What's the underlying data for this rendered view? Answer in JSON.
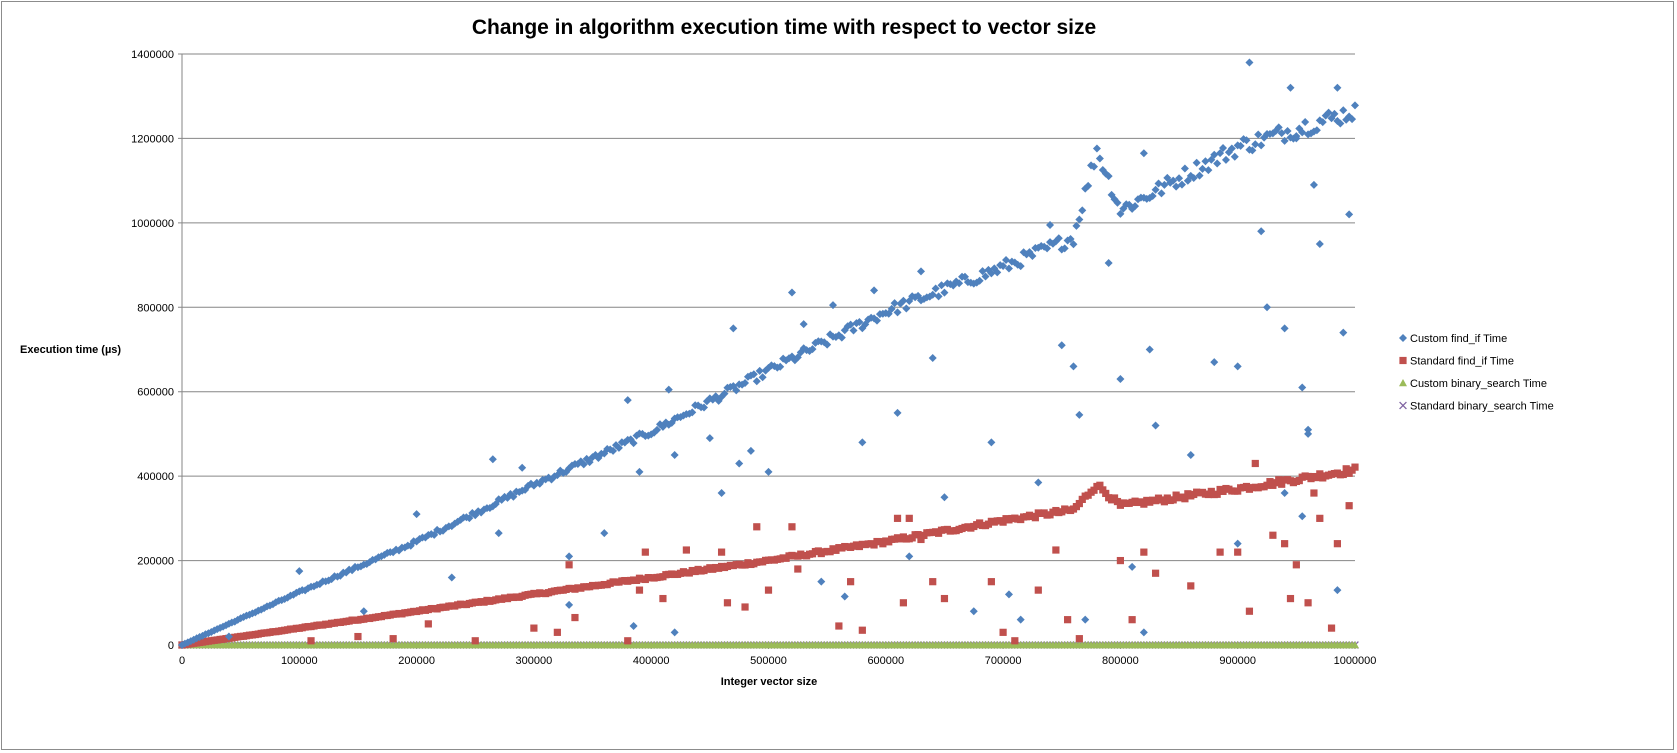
{
  "chart_data": {
    "type": "scatter",
    "title": "Change in algorithm execution time with respect to vector size",
    "xlabel": "Integer vector size",
    "ylabel": "Execution time  (µs)",
    "xlim": [
      0,
      1000000
    ],
    "ylim": [
      0,
      1400000
    ],
    "x_ticks": [
      "0",
      "100000",
      "200000",
      "300000",
      "400000",
      "500000",
      "600000",
      "700000",
      "800000",
      "900000",
      "1000000"
    ],
    "y_ticks": [
      "0",
      "200000",
      "400000",
      "600000",
      "800000",
      "1000000",
      "1200000",
      "1400000"
    ],
    "grid": "horizontal",
    "legend_position": "right",
    "series": [
      {
        "name": "Custom find_if Time",
        "marker": "diamond",
        "color": "#4f81bd",
        "trend": [
          [
            0,
            0
          ],
          [
            100000,
            125000
          ],
          [
            200000,
            245000
          ],
          [
            300000,
            380000
          ],
          [
            400000,
            505000
          ],
          [
            500000,
            650000
          ],
          [
            600000,
            790000
          ],
          [
            700000,
            895000
          ],
          [
            760000,
            965000
          ],
          [
            780000,
            1175000
          ],
          [
            800000,
            1030000
          ],
          [
            900000,
            1180000
          ],
          [
            1000000,
            1265000
          ]
        ],
        "outliers": [
          [
            100000,
            175000
          ],
          [
            200000,
            310000
          ],
          [
            265000,
            440000
          ],
          [
            270000,
            265000
          ],
          [
            290000,
            420000
          ],
          [
            330000,
            210000
          ],
          [
            360000,
            265000
          ],
          [
            380000,
            580000
          ],
          [
            390000,
            410000
          ],
          [
            415000,
            605000
          ],
          [
            420000,
            450000
          ],
          [
            450000,
            490000
          ],
          [
            460000,
            360000
          ],
          [
            470000,
            750000
          ],
          [
            475000,
            430000
          ],
          [
            485000,
            460000
          ],
          [
            500000,
            410000
          ],
          [
            520000,
            835000
          ],
          [
            530000,
            760000
          ],
          [
            555000,
            805000
          ],
          [
            580000,
            480000
          ],
          [
            590000,
            840000
          ],
          [
            610000,
            550000
          ],
          [
            630000,
            885000
          ],
          [
            640000,
            680000
          ],
          [
            650000,
            350000
          ],
          [
            690000,
            480000
          ],
          [
            740000,
            995000
          ],
          [
            750000,
            710000
          ],
          [
            760000,
            660000
          ],
          [
            765000,
            545000
          ],
          [
            790000,
            905000
          ],
          [
            800000,
            630000
          ],
          [
            820000,
            1165000
          ],
          [
            825000,
            700000
          ],
          [
            830000,
            520000
          ],
          [
            860000,
            450000
          ],
          [
            880000,
            670000
          ],
          [
            900000,
            660000
          ],
          [
            910000,
            1380000
          ],
          [
            920000,
            980000
          ],
          [
            925000,
            800000
          ],
          [
            940000,
            750000
          ],
          [
            945000,
            1320000
          ],
          [
            950000,
            1200000
          ],
          [
            955000,
            610000
          ],
          [
            960000,
            510000
          ],
          [
            965000,
            1090000
          ],
          [
            970000,
            950000
          ],
          [
            985000,
            1320000
          ],
          [
            990000,
            740000
          ],
          [
            995000,
            1020000
          ],
          [
            40000,
            20000
          ],
          [
            155000,
            80000
          ],
          [
            230000,
            160000
          ],
          [
            330000,
            95000
          ],
          [
            385000,
            45000
          ],
          [
            420000,
            30000
          ],
          [
            545000,
            150000
          ],
          [
            565000,
            115000
          ],
          [
            620000,
            210000
          ],
          [
            675000,
            80000
          ],
          [
            705000,
            120000
          ],
          [
            715000,
            60000
          ],
          [
            730000,
            385000
          ],
          [
            770000,
            60000
          ],
          [
            810000,
            185000
          ],
          [
            820000,
            30000
          ],
          [
            900000,
            240000
          ],
          [
            940000,
            360000
          ],
          [
            955000,
            305000
          ],
          [
            960000,
            500000
          ],
          [
            985000,
            130000
          ]
        ]
      },
      {
        "name": "Standard find_if Time",
        "marker": "square",
        "color": "#c0504d",
        "trend": [
          [
            0,
            0
          ],
          [
            100000,
            40000
          ],
          [
            200000,
            80000
          ],
          [
            300000,
            120000
          ],
          [
            400000,
            160000
          ],
          [
            500000,
            200000
          ],
          [
            600000,
            245000
          ],
          [
            650000,
            270000
          ],
          [
            700000,
            295000
          ],
          [
            760000,
            320000
          ],
          [
            780000,
            380000
          ],
          [
            800000,
            330000
          ],
          [
            900000,
            370000
          ],
          [
            1000000,
            415000
          ]
        ],
        "outliers": [
          [
            110000,
            10000
          ],
          [
            150000,
            20000
          ],
          [
            180000,
            15000
          ],
          [
            210000,
            50000
          ],
          [
            250000,
            10000
          ],
          [
            300000,
            40000
          ],
          [
            320000,
            30000
          ],
          [
            330000,
            190000
          ],
          [
            335000,
            65000
          ],
          [
            380000,
            10000
          ],
          [
            390000,
            130000
          ],
          [
            395000,
            220000
          ],
          [
            410000,
            110000
          ],
          [
            430000,
            225000
          ],
          [
            460000,
            220000
          ],
          [
            465000,
            100000
          ],
          [
            480000,
            90000
          ],
          [
            490000,
            280000
          ],
          [
            500000,
            130000
          ],
          [
            520000,
            280000
          ],
          [
            525000,
            180000
          ],
          [
            560000,
            45000
          ],
          [
            570000,
            150000
          ],
          [
            580000,
            35000
          ],
          [
            610000,
            300000
          ],
          [
            615000,
            100000
          ],
          [
            620000,
            300000
          ],
          [
            630000,
            250000
          ],
          [
            640000,
            150000
          ],
          [
            650000,
            110000
          ],
          [
            690000,
            150000
          ],
          [
            700000,
            30000
          ],
          [
            710000,
            10000
          ],
          [
            730000,
            130000
          ],
          [
            745000,
            225000
          ],
          [
            755000,
            60000
          ],
          [
            765000,
            15000
          ],
          [
            800000,
            200000
          ],
          [
            810000,
            60000
          ],
          [
            820000,
            220000
          ],
          [
            830000,
            170000
          ],
          [
            860000,
            140000
          ],
          [
            885000,
            220000
          ],
          [
            900000,
            220000
          ],
          [
            910000,
            80000
          ],
          [
            915000,
            430000
          ],
          [
            930000,
            260000
          ],
          [
            940000,
            240000
          ],
          [
            945000,
            110000
          ],
          [
            950000,
            190000
          ],
          [
            960000,
            100000
          ],
          [
            965000,
            360000
          ],
          [
            970000,
            300000
          ],
          [
            980000,
            40000
          ],
          [
            985000,
            240000
          ],
          [
            995000,
            330000
          ]
        ]
      },
      {
        "name": "Custom binary_search Time",
        "marker": "triangle",
        "color": "#9bbb59",
        "trend": [
          [
            0,
            0
          ],
          [
            1000000,
            0
          ]
        ],
        "outliers": []
      },
      {
        "name": "Standard binary_search Time",
        "marker": "x",
        "color": "#8064a2",
        "trend": [
          [
            0,
            0
          ],
          [
            1000000,
            0
          ]
        ],
        "outliers": []
      }
    ]
  }
}
